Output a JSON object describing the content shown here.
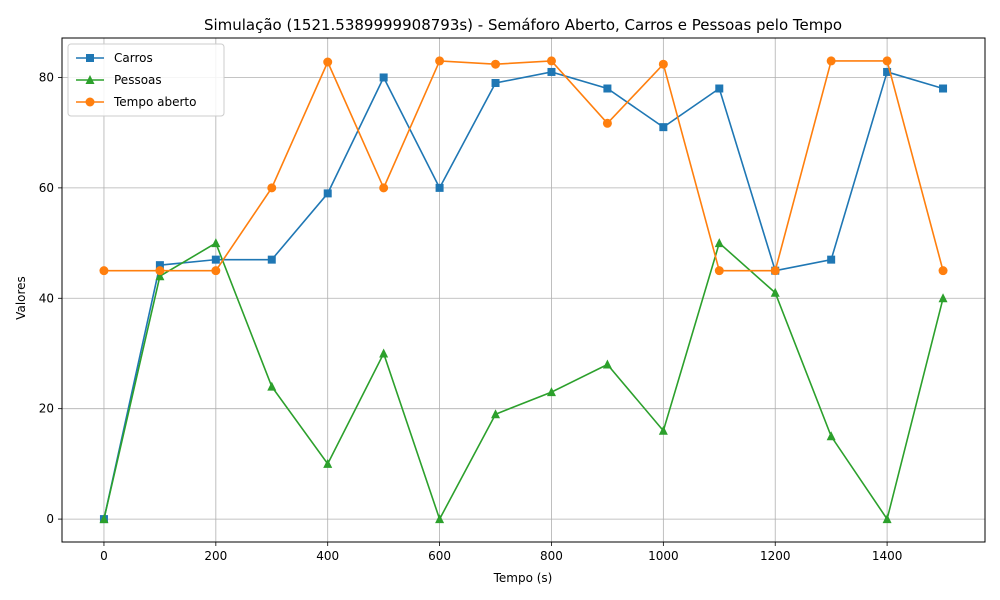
{
  "chart_data": {
    "type": "line",
    "title": "Simulação (1521.5389999908793s) - Semáforo Aberto, Carros e Pessoas pelo Tempo",
    "xlabel": "Tempo (s)",
    "ylabel": "Valores",
    "xlim": [
      -75,
      1575
    ],
    "ylim": [
      -4.15,
      87.15
    ],
    "xticks": [
      0,
      200,
      400,
      600,
      800,
      1000,
      1200,
      1400
    ],
    "yticks": [
      0,
      20,
      40,
      60,
      80
    ],
    "grid": true,
    "legend_position": "upper-left",
    "x": [
      0,
      100,
      200,
      300,
      400,
      500,
      600,
      700,
      800,
      900,
      1000,
      1100,
      1200,
      1300,
      1400,
      1500
    ],
    "series": [
      {
        "name": "Carros",
        "color": "#1f77b4",
        "marker": "square",
        "values": [
          0,
          46,
          47,
          47,
          59,
          80,
          60,
          79,
          81,
          78,
          71,
          78,
          45,
          47,
          81,
          78
        ]
      },
      {
        "name": "Pessoas",
        "color": "#2ca02c",
        "marker": "triangle",
        "values": [
          0,
          44,
          50,
          24,
          10,
          30,
          0,
          19,
          23,
          28,
          16,
          50,
          41,
          15,
          0,
          40
        ]
      },
      {
        "name": "Tempo aberto",
        "color": "#ff7f0e",
        "marker": "circle",
        "values": [
          45,
          45,
          45,
          60,
          82.8,
          60,
          83,
          82.4,
          83,
          71.7,
          82.4,
          45,
          45,
          83,
          83,
          45
        ]
      }
    ]
  }
}
